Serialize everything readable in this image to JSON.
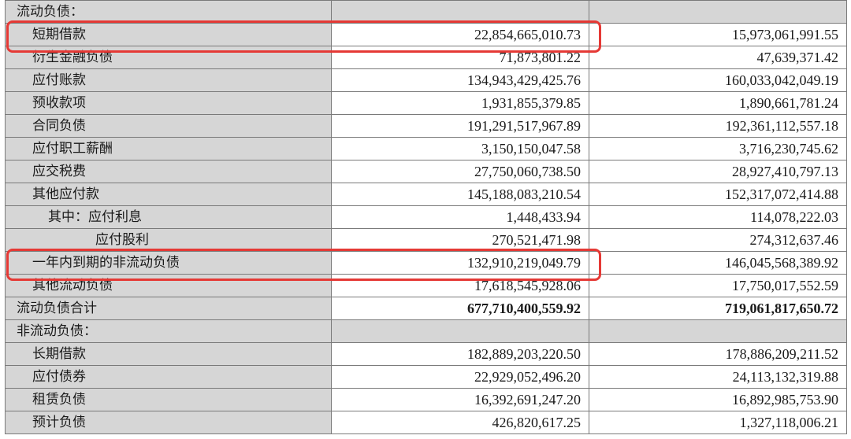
{
  "rows": [
    {
      "label": "流动负债：",
      "kind": "section",
      "indent": 0,
      "v1": "",
      "v2": ""
    },
    {
      "label": "短期借款",
      "kind": "item",
      "indent": 1,
      "v1": "22,854,665,010.73",
      "v2": "15,973,061,991.55"
    },
    {
      "label": "衍生金融负债",
      "kind": "item",
      "indent": 1,
      "v1": "71,873,801.22",
      "v2": "47,639,371.42"
    },
    {
      "label": "应付账款",
      "kind": "item",
      "indent": 1,
      "v1": "134,943,429,425.76",
      "v2": "160,033,042,049.19"
    },
    {
      "label": "预收款项",
      "kind": "item",
      "indent": 1,
      "v1": "1,931,855,379.85",
      "v2": "1,890,661,781.24"
    },
    {
      "label": "合同负债",
      "kind": "item",
      "indent": 1,
      "v1": "191,291,517,967.89",
      "v2": "192,361,112,557.18"
    },
    {
      "label": "应付职工薪酬",
      "kind": "item",
      "indent": 1,
      "v1": "3,150,150,047.58",
      "v2": "3,716,230,745.62"
    },
    {
      "label": "应交税费",
      "kind": "item",
      "indent": 1,
      "v1": "27,750,060,738.50",
      "v2": "28,927,410,797.13"
    },
    {
      "label": "其他应付款",
      "kind": "item",
      "indent": 1,
      "v1": "145,188,083,210.54",
      "v2": "152,317,072,414.88"
    },
    {
      "label": "其中：应付利息",
      "kind": "item",
      "indent": 2,
      "v1": "1,448,433.94",
      "v2": "114,078,222.03"
    },
    {
      "label": "应付股利",
      "kind": "item",
      "indent": 3,
      "v1": "270,521,471.98",
      "v2": "274,312,637.46"
    },
    {
      "label": "一年内到期的非流动负债",
      "kind": "item",
      "indent": 1,
      "v1": "132,910,219,049.79",
      "v2": "146,045,568,389.92"
    },
    {
      "label": "其他流动负债",
      "kind": "item",
      "indent": 1,
      "v1": "17,618,545,928.06",
      "v2": "17,750,017,552.59"
    },
    {
      "label": "流动负债合计",
      "kind": "total",
      "indent": 0,
      "v1": "677,710,400,559.92",
      "v2": "719,061,817,650.72"
    },
    {
      "label": "非流动负债：",
      "kind": "section",
      "indent": 0,
      "v1": "",
      "v2": ""
    },
    {
      "label": "长期借款",
      "kind": "item",
      "indent": 1,
      "v1": "182,889,203,220.50",
      "v2": "178,886,209,211.52"
    },
    {
      "label": "应付债券",
      "kind": "item",
      "indent": 1,
      "v1": "22,929,052,496.20",
      "v2": "24,113,132,319.88"
    },
    {
      "label": "租赁负债",
      "kind": "item",
      "indent": 1,
      "v1": "16,392,691,247.20",
      "v2": "16,892,985,753.90"
    },
    {
      "label": "预计负债",
      "kind": "item",
      "indent": 1,
      "v1": "426,820,617.25",
      "v2": "1,327,118,006.21"
    }
  ],
  "highlights": [
    1,
    11
  ],
  "colors": {
    "highlight": "#e53935",
    "label_bg": "#d6d6d6",
    "border": "#7a7a7a"
  }
}
